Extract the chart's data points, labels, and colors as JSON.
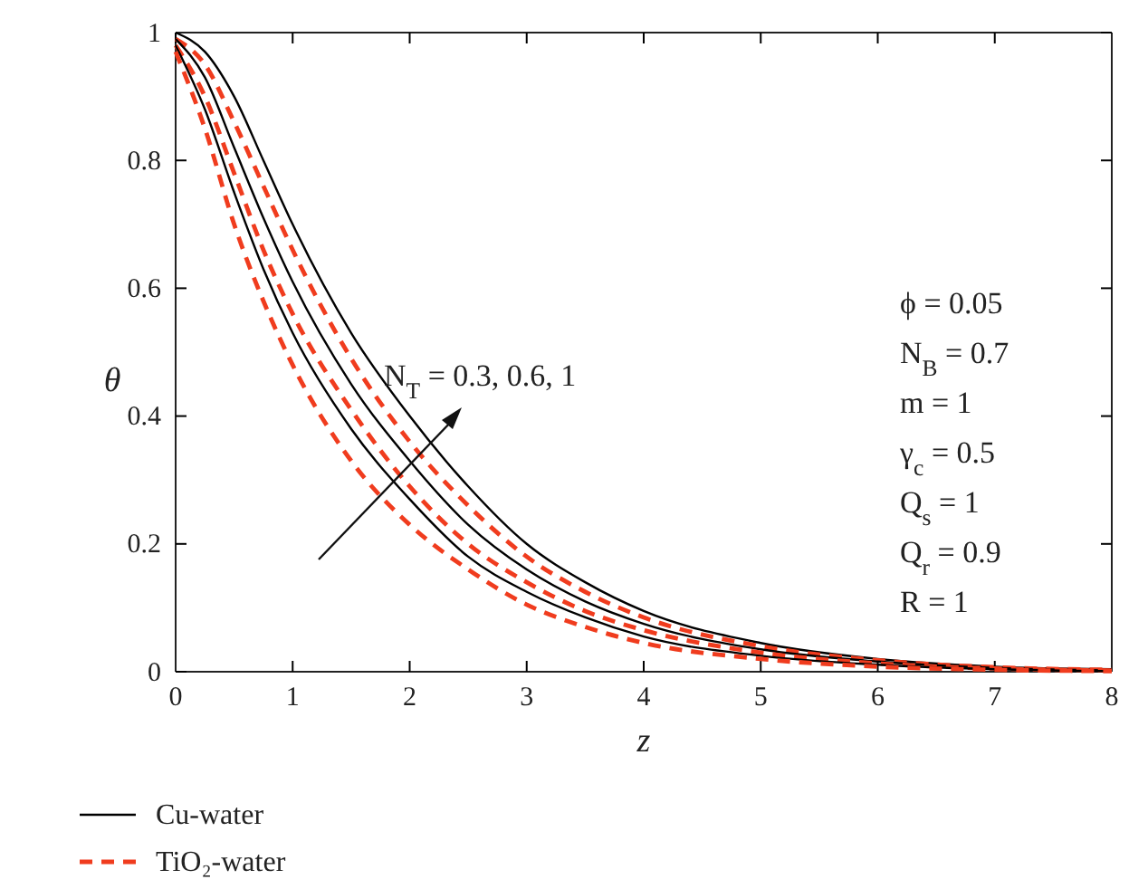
{
  "chart_data": {
    "type": "line",
    "xlabel": "z",
    "ylabel": "θ",
    "xlim": [
      0,
      8
    ],
    "ylim": [
      0,
      1
    ],
    "xticks": [
      0,
      1,
      2,
      3,
      4,
      5,
      6,
      7,
      8
    ],
    "yticks": [
      0,
      0.2,
      0.4,
      0.6,
      0.8,
      1
    ],
    "grid": false,
    "legend": "bottom",
    "marker": "none",
    "x": [
      0,
      0.25,
      0.5,
      0.75,
      1,
      1.5,
      2,
      2.5,
      3,
      3.5,
      4,
      5,
      6,
      7,
      8
    ],
    "series": [
      {
        "name": "Cu-water",
        "color": "#000000",
        "line_style": "solid",
        "values": [
          1,
          0.97,
          0.9,
          0.8,
          0.7,
          0.53,
          0.4,
          0.29,
          0.2,
          0.14,
          0.095,
          0.045,
          0.02,
          0.008,
          0.004
        ]
      },
      {
        "name": "TiO₂-water",
        "color": "#f03c1e",
        "line_style": "dashed",
        "values": [
          0.99,
          0.95,
          0.86,
          0.76,
          0.66,
          0.49,
          0.36,
          0.26,
          0.18,
          0.125,
          0.085,
          0.04,
          0.018,
          0.007,
          0.003
        ]
      },
      {
        "color": "#000000",
        "line_style": "solid",
        "values": [
          0.99,
          0.93,
          0.82,
          0.71,
          0.61,
          0.45,
          0.33,
          0.23,
          0.16,
          0.11,
          0.075,
          0.035,
          0.016,
          0.006,
          0.002
        ]
      },
      {
        "color": "#f03c1e",
        "line_style": "dashed",
        "values": [
          0.98,
          0.9,
          0.78,
          0.66,
          0.56,
          0.41,
          0.29,
          0.2,
          0.14,
          0.095,
          0.065,
          0.03,
          0.013,
          0.005,
          0.002
        ]
      },
      {
        "color": "#000000",
        "line_style": "solid",
        "values": [
          0.98,
          0.88,
          0.75,
          0.63,
          0.53,
          0.38,
          0.27,
          0.18,
          0.125,
          0.085,
          0.055,
          0.025,
          0.011,
          0.004,
          0.001
        ]
      },
      {
        "color": "#f03c1e",
        "line_style": "dashed",
        "values": [
          0.97,
          0.85,
          0.7,
          0.58,
          0.48,
          0.33,
          0.23,
          0.16,
          0.105,
          0.07,
          0.045,
          0.02,
          0.008,
          0.003,
          0.001
        ]
      }
    ],
    "annotations": [
      "N$_{T}$ = 0.3, 0.6, 1",
      "ϕ = 0.05",
      "N$_{B}$ = 0.7",
      "m = 1",
      "γ$_{c}$ = 0.5",
      "Q$_{s}$ = 1",
      "Q$_{r}$ = 0.9",
      "R = 1"
    ]
  }
}
